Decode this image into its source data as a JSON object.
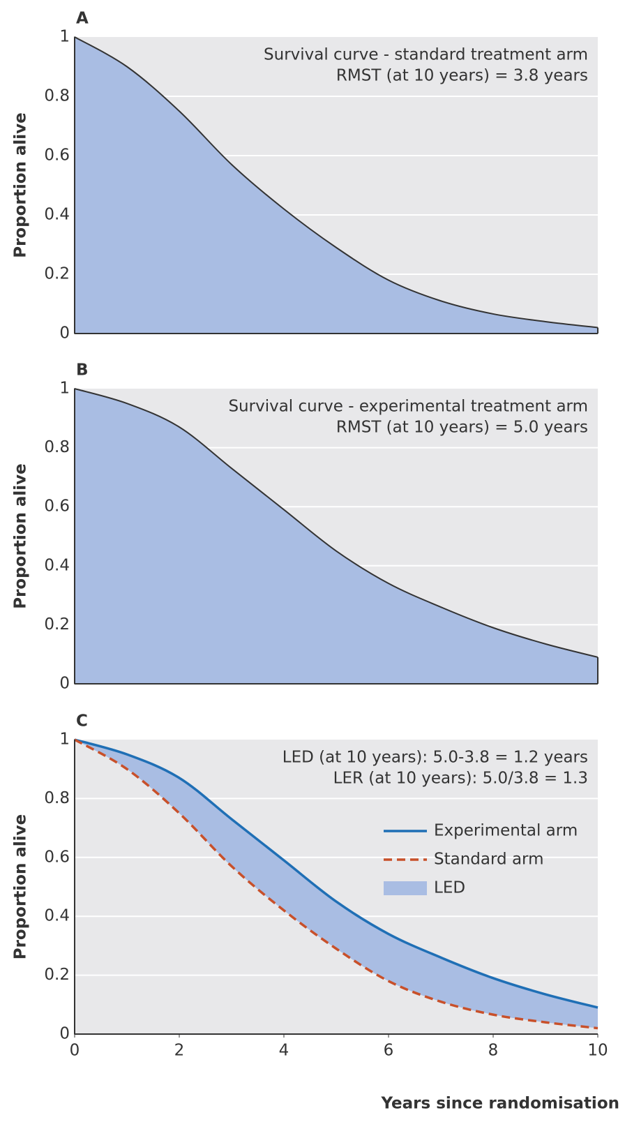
{
  "chart_data": [
    {
      "type": "area",
      "label": "A",
      "ylabel": "Proportion alive",
      "annotations": [
        "Survival curve - standard treatment arm",
        "RMST (at 10 years) = 3.8 years"
      ],
      "x": [
        0,
        1,
        2,
        3,
        4,
        5,
        6,
        7,
        8,
        9,
        10
      ],
      "values": [
        1.0,
        0.9,
        0.75,
        0.57,
        0.42,
        0.29,
        0.18,
        0.11,
        0.066,
        0.04,
        0.02
      ],
      "color": "#a9bde3",
      "line_color": "#333333",
      "xlim": [
        0,
        10
      ],
      "ylim": [
        0,
        1
      ],
      "yticks": [
        0,
        0.2,
        0.4,
        0.6,
        0.8,
        1
      ],
      "grid": true
    },
    {
      "type": "area",
      "label": "B",
      "ylabel": "Proportion alive",
      "annotations": [
        "Survival curve - experimental treatment arm",
        "RMST (at 10 years) = 5.0 years"
      ],
      "x": [
        0,
        1,
        2,
        3,
        4,
        5,
        6,
        7,
        8,
        9,
        10
      ],
      "values": [
        1.0,
        0.95,
        0.87,
        0.73,
        0.59,
        0.45,
        0.34,
        0.26,
        0.19,
        0.135,
        0.09
      ],
      "color": "#a9bde3",
      "line_color": "#333333",
      "xlim": [
        0,
        10
      ],
      "ylim": [
        0,
        1
      ],
      "yticks": [
        0,
        0.2,
        0.4,
        0.6,
        0.8,
        1
      ],
      "grid": true
    },
    {
      "type": "band",
      "label": "C",
      "ylabel": "Proportion alive",
      "xlabel": "Years since randomisation",
      "annotations": [
        "LED (at 10 years): 5.0-3.8 = 1.2 years",
        "LER (at 10 years): 5.0/3.8 = 1.3"
      ],
      "x": [
        0,
        1,
        2,
        3,
        4,
        5,
        6,
        7,
        8,
        9,
        10
      ],
      "series": [
        {
          "name": "Experimental arm",
          "color": "#1f6fb5",
          "dash": false,
          "values": [
            1.0,
            0.95,
            0.87,
            0.73,
            0.59,
            0.45,
            0.34,
            0.26,
            0.19,
            0.135,
            0.09
          ]
        },
        {
          "name": "Standard arm",
          "color": "#c8502a",
          "dash": true,
          "values": [
            1.0,
            0.9,
            0.75,
            0.57,
            0.42,
            0.29,
            0.18,
            0.11,
            0.066,
            0.04,
            0.02
          ]
        }
      ],
      "fill": {
        "name": "LED",
        "color": "#a9bde3"
      },
      "xlim": [
        0,
        10
      ],
      "xticks": [
        0,
        2,
        4,
        6,
        8,
        10
      ],
      "ylim": [
        0,
        1
      ],
      "yticks": [
        0,
        0.2,
        0.4,
        0.6,
        0.8,
        1
      ],
      "grid": true
    }
  ]
}
